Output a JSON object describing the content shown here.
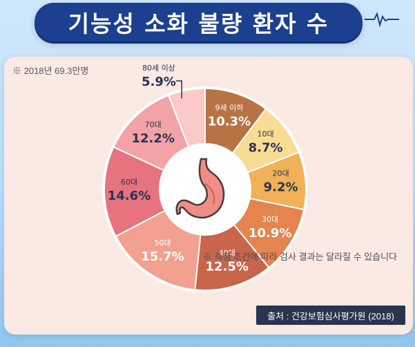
{
  "title": "기능성 소화 불량 환자 수",
  "note": "※ 2018년 69.3만명",
  "footnote": "※ 측정 조건에 따라 검사 결과는 달라질 수 있습니다",
  "source": "출처 : 건강보험심사평가원 (2018)",
  "icons": {
    "center": "stomach-icon",
    "title_decoration": "heartbeat-line-icon"
  },
  "chart_data": {
    "type": "pie",
    "categories": [
      "9세 이하",
      "10대",
      "20대",
      "30대",
      "40대",
      "50대",
      "60대",
      "70대",
      "80세 이상"
    ],
    "values": [
      10.3,
      8.7,
      9.2,
      10.9,
      12.5,
      15.7,
      14.6,
      12.2,
      5.9
    ],
    "labels": [
      "10.3%",
      "8.7%",
      "9.2%",
      "10.9%",
      "12.5%",
      "15.7%",
      "14.6%",
      "12.2%",
      "5.9%"
    ],
    "colors": [
      "#b87345",
      "#f9dc93",
      "#f0b158",
      "#e5844f",
      "#c8654a",
      "#f2a08f",
      "#e6737e",
      "#f3a2a6",
      "#fbc9c6"
    ],
    "label_colors": [
      "#ffffff",
      "#2a3350",
      "#2a3350",
      "#ffffff",
      "#ffffff",
      "#ffffff",
      "#2a3350",
      "#2a3350",
      "#2a3350"
    ],
    "unit": "%",
    "start_angle_deg": 0,
    "donut": true
  }
}
